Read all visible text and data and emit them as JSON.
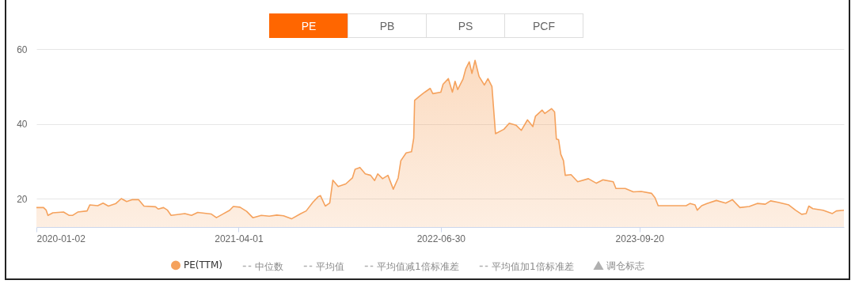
{
  "chart_data": {
    "type": "area",
    "annotations": [
      "PE",
      "PB",
      "PS",
      "PCF"
    ],
    "x": [
      "2020-01-02",
      "2020-01-18",
      "2020-01-24",
      "2020-01-28",
      "2020-02-08",
      "2020-03-03",
      "2020-03-16",
      "2020-03-23",
      "2020-04-04",
      "2020-04-25",
      "2020-05-01",
      "2020-05-19",
      "2020-05-31",
      "2020-06-12",
      "2020-06-29",
      "2020-07-11",
      "2020-07-23",
      "2020-08-04",
      "2020-08-19",
      "2020-08-31",
      "2020-09-26",
      "2020-10-02",
      "2020-10-14",
      "2020-10-23",
      "2020-10-31",
      "2020-12-01",
      "2020-12-16",
      "2020-12-30",
      "2021-01-29",
      "2021-02-10",
      "2021-02-22",
      "2021-03-12",
      "2021-03-20",
      "2021-04-04",
      "2021-04-19",
      "2021-05-03",
      "2021-05-22",
      "2021-06-09",
      "2021-06-26",
      "2021-07-11",
      "2021-07-29",
      "2021-08-19",
      "2021-08-31",
      "2021-09-15",
      "2021-09-27",
      "2021-10-02",
      "2021-10-13",
      "2021-10-23",
      "2021-10-30",
      "2021-11-11",
      "2021-11-28",
      "2021-12-13",
      "2021-12-19",
      "2021-12-30",
      "2022-01-11",
      "2022-01-23",
      "2022-02-01",
      "2022-02-08",
      "2022-02-19",
      "2022-03-03",
      "2022-03-15",
      "2022-03-26",
      "2022-04-01",
      "2022-04-13",
      "2022-04-25",
      "2022-04-30",
      "2022-05-02",
      "2022-05-13",
      "2022-05-25",
      "2022-06-06",
      "2022-06-12",
      "2022-06-30",
      "2022-07-05",
      "2022-07-17",
      "2022-07-26",
      "2022-08-01",
      "2022-08-07",
      "2022-08-19",
      "2022-08-25",
      "2022-09-02",
      "2022-09-08",
      "2022-09-15",
      "2022-09-24",
      "2022-10-06",
      "2022-10-14",
      "2022-10-23",
      "2022-10-31",
      "2022-11-19",
      "2022-12-01",
      "2022-12-16",
      "2022-12-28",
      "2023-01-11",
      "2023-01-23",
      "2023-01-29",
      "2023-02-13",
      "2023-02-19",
      "2023-03-06",
      "2023-03-13",
      "2023-03-17",
      "2023-03-22",
      "2023-03-27",
      "2023-04-02",
      "2023-04-06",
      "2023-04-19",
      "2023-05-04",
      "2023-05-28",
      "2023-06-15",
      "2023-06-30",
      "2023-07-23",
      "2023-07-29",
      "2023-08-19",
      "2023-09-06",
      "2023-09-24",
      "2023-10-17",
      "2023-10-25",
      "2023-11-01",
      "2023-12-04",
      "2024-01-03",
      "2024-01-12",
      "2024-01-23",
      "2024-01-28",
      "2024-02-07",
      "2024-02-19",
      "2024-03-11",
      "2024-04-01",
      "2024-04-16",
      "2024-05-03",
      "2024-05-24",
      "2024-06-11",
      "2024-06-29",
      "2024-07-11",
      "2024-07-28",
      "2024-08-21",
      "2024-09-05",
      "2024-09-19",
      "2024-09-29",
      "2024-10-05",
      "2024-10-14",
      "2024-11-06",
      "2024-11-27",
      "2024-12-06",
      "2024-12-23"
    ],
    "series": [
      {
        "name": "PE(TTM)",
        "color": "#f5a25d",
        "values": [
          17.7,
          17.7,
          17.0,
          15.6,
          16.3,
          16.5,
          15.6,
          15.6,
          16.5,
          16.8,
          18.4,
          18.2,
          18.9,
          18.1,
          18.8,
          20.1,
          19.3,
          19.8,
          19.8,
          18.1,
          17.9,
          17.3,
          17.7,
          17.0,
          15.6,
          16.1,
          15.6,
          16.4,
          16.0,
          15.0,
          15.8,
          17.0,
          18.0,
          17.8,
          16.7,
          15.0,
          15.6,
          15.4,
          15.7,
          15.5,
          14.7,
          16.1,
          16.8,
          19.1,
          20.6,
          20.9,
          18.1,
          18.9,
          25.0,
          23.3,
          24.0,
          25.6,
          27.9,
          28.4,
          26.7,
          26.3,
          24.9,
          26.7,
          25.4,
          26.3,
          22.6,
          25.6,
          30.2,
          32.3,
          32.6,
          36.2,
          46.3,
          47.4,
          48.5,
          49.5,
          48.1,
          48.5,
          50.6,
          52.1,
          48.5,
          51.4,
          49.2,
          52.0,
          54.7,
          56.6,
          53.5,
          57.0,
          52.7,
          50.4,
          52.1,
          50.0,
          37.4,
          38.6,
          40.2,
          39.7,
          38.3,
          41.1,
          39.3,
          42.1,
          43.7,
          42.8,
          44.1,
          43.2,
          36.0,
          35.8,
          31.9,
          30.2,
          26.3,
          26.5,
          24.6,
          25.4,
          24.2,
          25.1,
          24.6,
          22.8,
          22.8,
          21.9,
          22.0,
          21.5,
          20.3,
          18.2,
          18.2,
          18.2,
          18.8,
          18.4,
          17.0,
          18.2,
          18.8,
          19.6,
          18.9,
          19.8,
          17.7,
          18.0,
          18.8,
          18.6,
          19.5,
          19.1,
          18.4,
          17.0,
          15.9,
          16.1,
          18.1,
          17.4,
          17.0,
          16.1,
          16.8,
          17.0
        ]
      },
      {
        "name": "中位数",
        "type": "line",
        "line_style": "dashed",
        "color": "#b0b0b0",
        "values": [
          null,
          null,
          null,
          null,
          null,
          null,
          null,
          null,
          null,
          null,
          null,
          null,
          null,
          null,
          null,
          null,
          null,
          null,
          null,
          null,
          null,
          null,
          null,
          null,
          null,
          null,
          null,
          null,
          null,
          null,
          null,
          null,
          null,
          null,
          null,
          null,
          null,
          null,
          null,
          null,
          null,
          null,
          null,
          null,
          null,
          null,
          null,
          null,
          null,
          null,
          null,
          null,
          null,
          null,
          null,
          null,
          null,
          null,
          null,
          null,
          null,
          null,
          null,
          null,
          null,
          null,
          null,
          null,
          null,
          null,
          null,
          null,
          null,
          null,
          null,
          null,
          null,
          null,
          null,
          null,
          null,
          null,
          null,
          null,
          null,
          null,
          null,
          null,
          null,
          null,
          null,
          null,
          null,
          null,
          null,
          null,
          null,
          null,
          null,
          null,
          null,
          null,
          null,
          null,
          null,
          null,
          null,
          null,
          null,
          null,
          null,
          null,
          null,
          null,
          null,
          null,
          null,
          null,
          null,
          null,
          null,
          null,
          null,
          null,
          null,
          null,
          null,
          null,
          null,
          null,
          null,
          null,
          null,
          null,
          null,
          null,
          null,
          null,
          null,
          null,
          null,
          null
        ]
      },
      {
        "name": "平均值",
        "type": "line",
        "line_style": "dashed",
        "color": "#b0b0b0",
        "values": [
          null,
          null,
          null,
          null,
          null,
          null,
          null,
          null,
          null,
          null,
          null,
          null,
          null,
          null,
          null,
          null,
          null,
          null,
          null,
          null,
          null,
          null,
          null,
          null,
          null,
          null,
          null,
          null,
          null,
          null,
          null,
          null,
          null,
          null,
          null,
          null,
          null,
          null,
          null,
          null,
          null,
          null,
          null,
          null,
          null,
          null,
          null,
          null,
          null,
          null,
          null,
          null,
          null,
          null,
          null,
          null,
          null,
          null,
          null,
          null,
          null,
          null,
          null,
          null,
          null,
          null,
          null,
          null,
          null,
          null,
          null,
          null,
          null,
          null,
          null,
          null,
          null,
          null,
          null,
          null,
          null,
          null,
          null,
          null,
          null,
          null,
          null,
          null,
          null,
          null,
          null,
          null,
          null,
          null,
          null,
          null,
          null,
          null,
          null,
          null,
          null,
          null,
          null,
          null,
          null,
          null,
          null,
          null,
          null,
          null,
          null,
          null,
          null,
          null,
          null,
          null,
          null,
          null,
          null,
          null,
          null,
          null,
          null,
          null,
          null,
          null,
          null,
          null,
          null,
          null,
          null,
          null,
          null,
          null,
          null,
          null,
          null,
          null,
          null,
          null,
          null,
          null
        ]
      },
      {
        "name": "平均值减1倍标准差",
        "type": "line",
        "line_style": "dashed",
        "color": "#b0b0b0",
        "values": [
          null,
          null,
          null,
          null,
          null,
          null,
          null,
          null,
          null,
          null,
          null,
          null,
          null,
          null,
          null,
          null,
          null,
          null,
          null,
          null,
          null,
          null,
          null,
          null,
          null,
          null,
          null,
          null,
          null,
          null,
          null,
          null,
          null,
          null,
          null,
          null,
          null,
          null,
          null,
          null,
          null,
          null,
          null,
          null,
          null,
          null,
          null,
          null,
          null,
          null,
          null,
          null,
          null,
          null,
          null,
          null,
          null,
          null,
          null,
          null,
          null,
          null,
          null,
          null,
          null,
          null,
          null,
          null,
          null,
          null,
          null,
          null,
          null,
          null,
          null,
          null,
          null,
          null,
          null,
          null,
          null,
          null,
          null,
          null,
          null,
          null,
          null,
          null,
          null,
          null,
          null,
          null,
          null,
          null,
          null,
          null,
          null,
          null,
          null,
          null,
          null,
          null,
          null,
          null,
          null,
          null,
          null,
          null,
          null,
          null,
          null,
          null,
          null,
          null,
          null,
          null,
          null,
          null,
          null,
          null,
          null,
          null,
          null,
          null,
          null,
          null,
          null,
          null,
          null,
          null,
          null,
          null,
          null,
          null,
          null,
          null,
          null,
          null,
          null,
          null,
          null,
          null
        ]
      },
      {
        "name": "平均值加1倍标准差",
        "type": "line",
        "line_style": "dashed",
        "color": "#b0b0b0",
        "values": [
          null,
          null,
          null,
          null,
          null,
          null,
          null,
          null,
          null,
          null,
          null,
          null,
          null,
          null,
          null,
          null,
          null,
          null,
          null,
          null,
          null,
          null,
          null,
          null,
          null,
          null,
          null,
          null,
          null,
          null,
          null,
          null,
          null,
          null,
          null,
          null,
          null,
          null,
          null,
          null,
          null,
          null,
          null,
          null,
          null,
          null,
          null,
          null,
          null,
          null,
          null,
          null,
          null,
          null,
          null,
          null,
          null,
          null,
          null,
          null,
          null,
          null,
          null,
          null,
          null,
          null,
          null,
          null,
          null,
          null,
          null,
          null,
          null,
          null,
          null,
          null,
          null,
          null,
          null,
          null,
          null,
          null,
          null,
          null,
          null,
          null,
          null,
          null,
          null,
          null,
          null,
          null,
          null,
          null,
          null,
          null,
          null,
          null,
          null,
          null,
          null,
          null,
          null,
          null,
          null,
          null,
          null,
          null,
          null,
          null,
          null,
          null,
          null,
          null,
          null,
          null,
          null,
          null,
          null,
          null,
          null,
          null,
          null,
          null,
          null,
          null,
          null,
          null,
          null,
          null,
          null,
          null,
          null,
          null,
          null,
          null,
          null,
          null,
          null,
          null,
          null,
          null
        ]
      },
      {
        "name": "调仓标志",
        "type": "scatter",
        "marker": "triangle",
        "color": "#b0b0b0",
        "values": [
          null,
          null,
          null,
          null,
          null,
          null,
          null,
          null,
          null,
          null,
          null,
          null,
          null,
          null,
          null,
          null,
          null,
          null,
          null,
          null,
          null,
          null,
          null,
          null,
          null,
          null,
          null,
          null,
          null,
          null,
          null,
          null,
          null,
          null,
          null,
          null,
          null,
          null,
          null,
          null,
          null,
          null,
          null,
          null,
          null,
          null,
          null,
          null,
          null,
          null,
          null,
          null,
          null,
          null,
          null,
          null,
          null,
          null,
          null,
          null,
          null,
          null,
          null,
          null,
          null,
          null,
          null,
          null,
          null,
          null,
          null,
          null,
          null,
          null,
          null,
          null,
          null,
          null,
          null,
          null,
          null,
          null,
          null,
          null,
          null,
          null,
          null,
          null,
          null,
          null,
          null,
          null,
          null,
          null,
          null,
          null,
          null,
          null,
          null,
          null,
          null,
          null,
          null,
          null,
          null,
          null,
          null,
          null,
          null,
          null,
          null,
          null,
          null,
          null,
          null,
          null,
          null,
          null,
          null,
          null,
          null,
          null,
          null,
          null,
          null,
          null,
          null,
          null,
          null,
          null,
          null,
          null,
          null,
          null,
          null,
          null,
          null,
          null,
          null,
          null,
          null,
          null
        ]
      }
    ],
    "xlim": [
      "2020-01-02",
      "2024-12-23"
    ],
    "xticks": [
      {
        "value": "2020-01-02",
        "label": "2020-01-02"
      },
      {
        "value": "2021-04-01",
        "label": "2021-04-01"
      },
      {
        "value": "2022-06-30",
        "label": "2022-06-30"
      },
      {
        "value": "2023-09-20",
        "label": "2023-09-20"
      }
    ],
    "ylim": [
      12.5,
      60
    ],
    "yticks": [
      20,
      40,
      60
    ],
    "grid": "y",
    "legend": "bottom"
  }
}
